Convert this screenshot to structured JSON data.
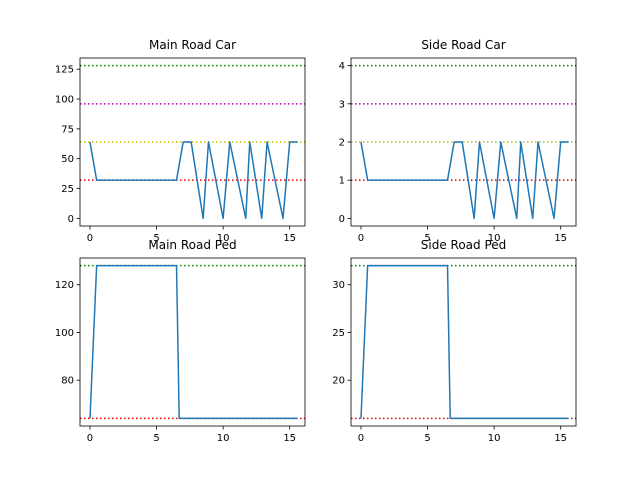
{
  "chart_data": [
    {
      "type": "line",
      "title": "Main Road Car",
      "xlim": [
        -0.75,
        16.15
      ],
      "ylim": [
        -6.4,
        134.4
      ],
      "xticks": [
        0,
        5,
        10,
        15
      ],
      "yticks": [
        0,
        25,
        50,
        75,
        100,
        125
      ],
      "series": [
        {
          "color": "#1f77b4",
          "x": [
            0,
            0.5,
            6.5,
            7.0,
            7.6,
            8.5,
            8.9,
            10.0,
            10.5,
            11.7,
            12.0,
            12.9,
            13.3,
            14.5,
            15.0,
            15.6
          ],
          "y": [
            64,
            32,
            32,
            64,
            64,
            0,
            64,
            0,
            64,
            0,
            64,
            0,
            64,
            0,
            64,
            64
          ],
          "step_pattern": "stepped"
        }
      ],
      "reference_lines": [
        {
          "y": 128,
          "color": "#008000"
        },
        {
          "y": 96,
          "color": "#c000c0"
        },
        {
          "y": 64,
          "color": "#bfbf00"
        },
        {
          "y": 32,
          "color": "#e00000"
        }
      ]
    },
    {
      "type": "line",
      "title": "Side Road Car",
      "xlim": [
        -0.75,
        16.15
      ],
      "ylim": [
        -0.2,
        4.2
      ],
      "xticks": [
        0,
        5,
        10,
        15
      ],
      "yticks": [
        0,
        1,
        2,
        3,
        4
      ],
      "series": [
        {
          "color": "#1f77b4",
          "x": [
            0,
            0.5,
            6.5,
            7.0,
            7.6,
            8.5,
            8.9,
            10.0,
            10.5,
            11.7,
            12.0,
            12.9,
            13.3,
            14.5,
            15.0,
            15.6
          ],
          "y": [
            2,
            1,
            1,
            2,
            2,
            0,
            2,
            0,
            2,
            0,
            2,
            0,
            2,
            0,
            2,
            2
          ],
          "step_pattern": "stepped"
        }
      ],
      "reference_lines": [
        {
          "y": 4,
          "color": "#008000"
        },
        {
          "y": 3,
          "color": "#c000c0"
        },
        {
          "y": 2,
          "color": "#bfbf00"
        },
        {
          "y": 1,
          "color": "#e00000"
        }
      ]
    },
    {
      "type": "line",
      "title": "Main Road Ped",
      "xlim": [
        -0.75,
        16.15
      ],
      "ylim": [
        60.8,
        131.2
      ],
      "xticks": [
        0,
        5,
        10,
        15
      ],
      "yticks": [
        80,
        100,
        120
      ],
      "series": [
        {
          "color": "#1f77b4",
          "x": [
            0,
            0.5,
            6.5,
            6.7,
            15.6
          ],
          "y": [
            64,
            128,
            128,
            64,
            64
          ],
          "step_pattern": "stepped"
        }
      ],
      "reference_lines": [
        {
          "y": 128,
          "color": "#008000"
        },
        {
          "y": 64,
          "color": "#e00000"
        }
      ]
    },
    {
      "type": "line",
      "title": "Side Road Ped",
      "xlim": [
        -0.75,
        16.15
      ],
      "ylim": [
        15.2,
        32.8
      ],
      "xticks": [
        0,
        5,
        10,
        15
      ],
      "yticks": [
        20,
        25,
        30
      ],
      "series": [
        {
          "color": "#1f77b4",
          "x": [
            0,
            0.5,
            6.5,
            6.7,
            15.6
          ],
          "y": [
            16,
            32,
            32,
            16,
            16
          ],
          "step_pattern": "stepped"
        }
      ],
      "reference_lines": [
        {
          "y": 32,
          "color": "#008000"
        },
        {
          "y": 16,
          "color": "#e00000"
        }
      ]
    }
  ]
}
